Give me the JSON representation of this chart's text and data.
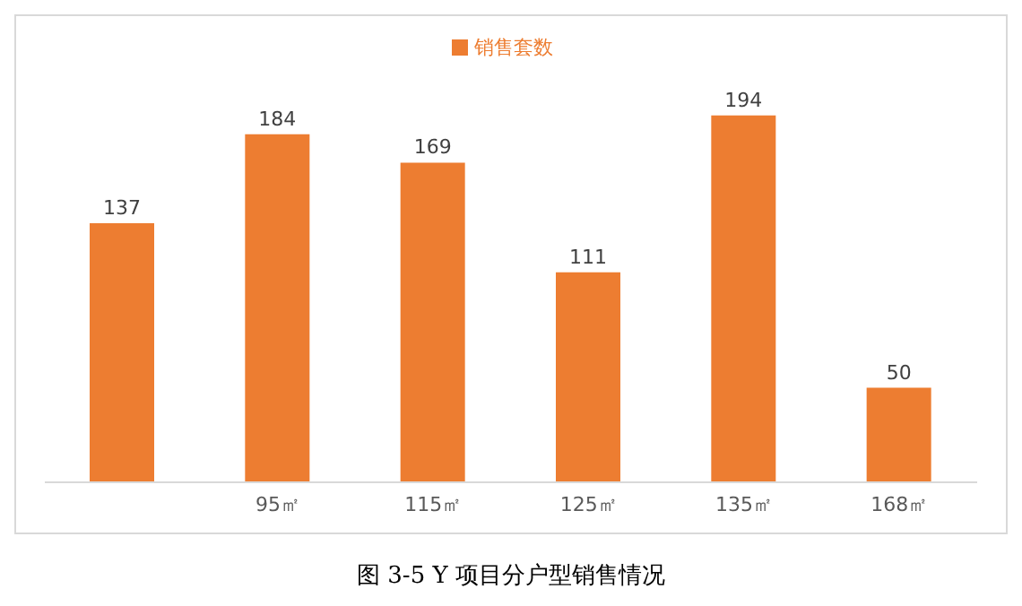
{
  "chart_data": {
    "type": "bar",
    "title": "图 3-5 Y 项目分户型销售情况",
    "categories": [
      null,
      "95㎡",
      "115㎡",
      "125㎡",
      "135㎡",
      "168㎡"
    ],
    "series": [
      {
        "name": "销售套数",
        "color": "#ed7d31",
        "values": [
          137,
          184,
          169,
          111,
          194,
          50
        ]
      }
    ],
    "data_labels": true,
    "legend": "top",
    "grid": false
  }
}
